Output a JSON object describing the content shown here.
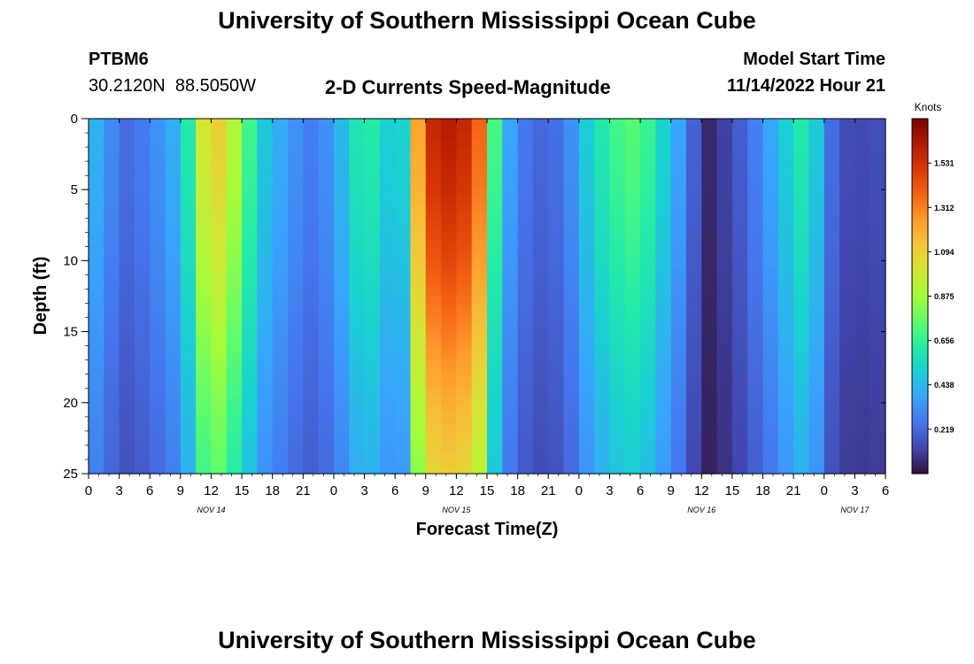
{
  "page": {
    "title": "University of Southern Mississippi Ocean Cube",
    "footer_title": "University of Southern Mississippi Ocean Cube",
    "station_id": "PTBM6",
    "station_coords": "30.2120N  88.5050W",
    "subtitle": "2-D Currents Speed-Magnitude",
    "model_start_label": "Model Start Time",
    "model_start_value": "11/14/2022 Hour 21"
  },
  "chart_data": {
    "type": "heatmap",
    "title": "2-D Currents Speed-Magnitude",
    "xlabel": "Forecast Time(Z)",
    "ylabel": "Depth (ft)",
    "units_label": "Knots",
    "x_start_hour": 0,
    "x_end_hour": 78,
    "x_step_hours": 1.5,
    "x_tick_hours": [
      0,
      3,
      6,
      9,
      12,
      15,
      18,
      21,
      24,
      27,
      30,
      33,
      36,
      39,
      42,
      45,
      48,
      51,
      54,
      57,
      60,
      63,
      66,
      69,
      72,
      75,
      78
    ],
    "x_tick_labels": [
      "0",
      "3",
      "6",
      "9",
      "12",
      "15",
      "18",
      "21",
      "0",
      "3",
      "6",
      "9",
      "12",
      "15",
      "18",
      "21",
      "0",
      "3",
      "6",
      "9",
      "12",
      "15",
      "18",
      "21",
      "0",
      "3",
      "6"
    ],
    "date_labels": [
      {
        "label": "NOV 14",
        "hour": 12
      },
      {
        "label": "NOV 15",
        "hour": 36
      },
      {
        "label": "NOV 16",
        "hour": 60
      },
      {
        "label": "NOV 17",
        "hour": 75
      }
    ],
    "y_range": [
      0,
      25
    ],
    "y_step_ft": 0.5,
    "y_ticks": [
      0,
      5,
      10,
      15,
      20,
      25
    ],
    "y_tick_labels": [
      "0",
      "5",
      "10",
      "15",
      "20",
      "25"
    ],
    "colorbar_range": [
      0,
      1.75
    ],
    "colorbar_ticks": [
      0.219,
      0.438,
      0.656,
      0.875,
      1.094,
      1.312,
      1.531
    ],
    "colorbar_tick_labels": [
      "0.219",
      "0.438",
      "0.656",
      "0.875",
      "1.094",
      "1.312",
      "1.531"
    ],
    "colormap": [
      "#30123b",
      "#4145ab",
      "#4675ed",
      "#39a2fc",
      "#1bcfd4",
      "#24eca6",
      "#61fc6c",
      "#a4fc3b",
      "#d1e834",
      "#f3c63a",
      "#fe9b2d",
      "#f36315",
      "#d93806",
      "#b11901",
      "#7a0402"
    ],
    "series": [
      {
        "name": "speed_profile_time_knots",
        "x_hours": [
          0,
          2,
          4,
          6,
          8,
          9.5,
          10.5,
          11.5,
          12.5,
          14,
          15.5,
          17,
          18,
          20,
          22,
          23.5,
          25,
          26.5,
          27.5,
          29,
          30.5,
          31.5,
          32.5,
          33.5,
          34.5,
          35.5,
          36.5,
          37.5,
          38.5,
          39.5,
          40.5,
          41.5,
          43,
          45,
          47,
          49,
          51,
          53,
          55,
          57,
          58.5,
          59.5,
          60.5,
          61.5,
          62.5,
          64,
          66,
          68,
          69.5,
          70.5,
          71.5,
          72.5,
          74,
          76,
          78
        ],
        "values": [
          0.48,
          0.32,
          0.22,
          0.3,
          0.38,
          0.55,
          0.8,
          1.08,
          1.12,
          0.96,
          0.72,
          0.5,
          0.44,
          0.34,
          0.27,
          0.34,
          0.46,
          0.62,
          0.64,
          0.52,
          0.44,
          0.76,
          1.38,
          1.55,
          1.62,
          1.62,
          1.58,
          1.55,
          1.32,
          0.78,
          0.46,
          0.36,
          0.24,
          0.2,
          0.3,
          0.52,
          0.66,
          0.74,
          0.66,
          0.44,
          0.32,
          0.16,
          0.06,
          0.05,
          0.14,
          0.2,
          0.33,
          0.48,
          0.62,
          0.58,
          0.46,
          0.25,
          0.15,
          0.14,
          0.16
        ]
      },
      {
        "name": "depth_factor",
        "depth_ft": [
          0,
          5,
          10,
          15,
          20,
          25
        ],
        "values": [
          1.0,
          0.96,
          0.9,
          0.82,
          0.74,
          0.68
        ]
      }
    ]
  }
}
